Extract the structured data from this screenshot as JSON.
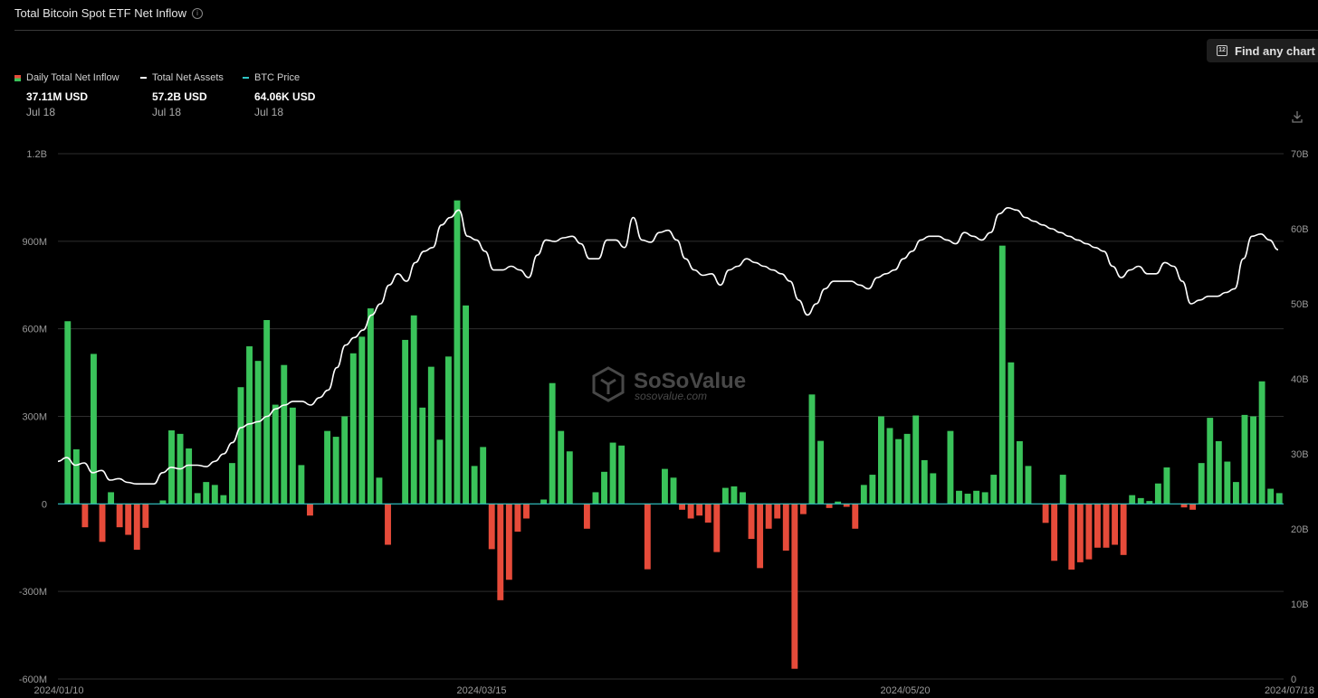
{
  "header": {
    "title": "Total Bitcoin Spot ETF Net Inflow",
    "find_button": "Find any chart"
  },
  "legend": [
    {
      "label": "Daily Total Net Inflow",
      "value": "37.11M USD",
      "date": "Jul 18",
      "swatch": "inflow"
    },
    {
      "label": "Total Net Assets",
      "value": "57.2B USD",
      "date": "Jul 18",
      "swatch": "assets"
    },
    {
      "label": "BTC Price",
      "value": "64.06K USD",
      "date": "Jul 18",
      "swatch": "btc"
    }
  ],
  "watermark": {
    "brand": "SoSoValue",
    "url": "sosovalue.com"
  },
  "colors": {
    "positive": "#3ac35a",
    "negative": "#e64b3a",
    "line": "#ffffff",
    "zero_line": "#2ec5c5",
    "grid": "#2e2e2e"
  },
  "chart_data": {
    "type": "bar",
    "title": "Total Bitcoin Spot ETF Net Inflow",
    "left_axis": {
      "ticks": [
        "1.2B",
        "900M",
        "600M",
        "300M",
        "0",
        "-300M",
        "-600M"
      ],
      "min": -600,
      "max": 1200,
      "unit": "M USD"
    },
    "right_axis": {
      "ticks": [
        "70B",
        "60B",
        "50B",
        "40B",
        "30B",
        "20B",
        "10B",
        "0"
      ],
      "min": 0,
      "max": 70,
      "unit": "B USD"
    },
    "x_ticks": [
      "2024/01/10",
      "2024/03/15",
      "2024/05/20",
      "2024/07/18"
    ],
    "grid": true,
    "series": [
      {
        "name": "Daily Total Net Inflow",
        "type": "bar",
        "unit": "M USD",
        "values": [
          626,
          187,
          -80,
          514,
          -130,
          40,
          -80,
          -106,
          -157,
          -82,
          0,
          12,
          252,
          240,
          190,
          37,
          75,
          65,
          30,
          140,
          400,
          540,
          490,
          630,
          340,
          476,
          330,
          133,
          -40,
          0,
          250,
          230,
          300,
          516,
          573,
          670,
          90,
          -140,
          0,
          562,
          646,
          330,
          470,
          220,
          505,
          1040,
          680,
          130,
          195,
          -155,
          -330,
          -260,
          -95,
          -50,
          0,
          15,
          414,
          250,
          180,
          0,
          -85,
          40,
          110,
          210,
          200,
          0,
          0,
          -224,
          0,
          120,
          90,
          -20,
          -50,
          -40,
          -64,
          -165,
          55,
          60,
          40,
          -120,
          -220,
          -85,
          -50,
          -160,
          -565,
          -35,
          375,
          216,
          -14,
          8,
          -10,
          -85,
          65,
          100,
          300,
          260,
          222,
          240,
          303,
          150,
          105,
          0,
          250,
          45,
          35,
          45,
          40,
          100,
          885,
          485,
          215,
          130,
          0,
          -65,
          -195,
          100,
          -225,
          -200,
          -190,
          -150,
          -150,
          -140,
          -175,
          30,
          20,
          10,
          70,
          125,
          0,
          -12,
          -20,
          140,
          295,
          215,
          145,
          75,
          305,
          300,
          420,
          52,
          37
        ]
      },
      {
        "name": "Total Net Assets",
        "type": "line",
        "unit": "B USD",
        "values": [
          29.0,
          29.5,
          28.5,
          28.8,
          27.5,
          27.8,
          26.5,
          26.7,
          26.2,
          26.0,
          26.0,
          26.0,
          27.5,
          28.2,
          28.0,
          28.5,
          28.5,
          28.3,
          29.0,
          30.0,
          31.5,
          33.5,
          34.0,
          34.3,
          35.0,
          36.0,
          36.5,
          37.0,
          37.0,
          36.5,
          37.5,
          38.5,
          41.5,
          44.5,
          45.5,
          46.5,
          48.5,
          50.0,
          52.5,
          54.0,
          53.0,
          55.5,
          57.0,
          57.5,
          60.5,
          61.5,
          62.5,
          59.0,
          58.5,
          57.0,
          54.5,
          54.5,
          55.0,
          54.5,
          53.5,
          56.5,
          58.5,
          58.3,
          58.8,
          59.0,
          58.0,
          56.0,
          56.0,
          58.5,
          58.5,
          57.5,
          61.5,
          58.5,
          58.2,
          59.5,
          59.8,
          58.5,
          56.0,
          54.5,
          53.8,
          54.0,
          52.5,
          54.5,
          55.0,
          56.0,
          55.5,
          55.0,
          54.5,
          54.0,
          53.0,
          50.5,
          48.5,
          50.0,
          52.0,
          53.0,
          53.0,
          53.0,
          52.5,
          52.0,
          53.5,
          54.0,
          54.5,
          56.0,
          57.0,
          58.5,
          59.0,
          59.0,
          58.5,
          58.0,
          59.5,
          59.0,
          58.5,
          59.5,
          62.0,
          62.8,
          62.5,
          61.5,
          61.0,
          60.5,
          60.0,
          59.5,
          59.0,
          58.5,
          58.0,
          57.5,
          57.0,
          55.0,
          53.5,
          54.5,
          55.0,
          54.0,
          54.0,
          55.5,
          55.0,
          53.0,
          50.0,
          50.5,
          51.0,
          51.0,
          51.5,
          52.0,
          56.0,
          59.0,
          59.3,
          58.5,
          57.2
        ]
      }
    ]
  }
}
